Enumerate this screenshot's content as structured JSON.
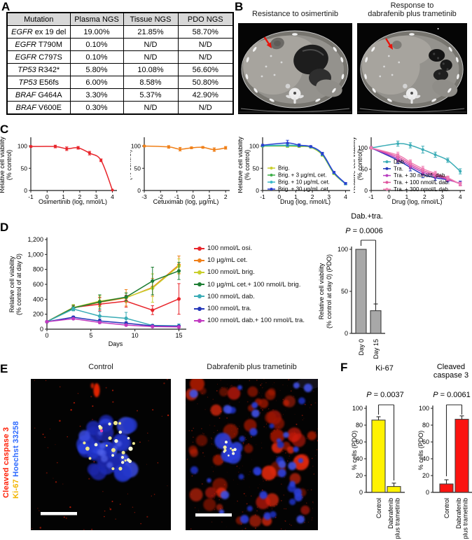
{
  "panelA": {
    "letter": "A",
    "table": {
      "headers": [
        "Mutation",
        "Plasma NGS",
        "Tissue NGS",
        "PDO NGS"
      ],
      "rows": [
        {
          "gene": "EGFR",
          "mut": "ex 19 del",
          "plasma": "19.00%",
          "tissue": "21.85%",
          "pdo": "58.70%"
        },
        {
          "gene": "EGFR",
          "mut": "T790M",
          "plasma": "0.10%",
          "tissue": "N/D",
          "pdo": "N/D"
        },
        {
          "gene": "EGFR",
          "mut": "C797S",
          "plasma": "0.10%",
          "tissue": "N/D",
          "pdo": "N/D"
        },
        {
          "gene": "TP53",
          "mut": "R342*",
          "plasma": "5.80%",
          "tissue": "10.08%",
          "pdo": "56.60%"
        },
        {
          "gene": "TP53",
          "mut": "E56fs",
          "plasma": "6.00%",
          "tissue": "8.58%",
          "pdo": "50.80%"
        },
        {
          "gene": "BRAF",
          "mut": "G464A",
          "plasma": "3.30%",
          "tissue": "5.37%",
          "pdo": "42.90%"
        },
        {
          "gene": "BRAF",
          "mut": "V600E",
          "plasma": "0.30%",
          "tissue": "N/D",
          "pdo": "N/D"
        }
      ]
    }
  },
  "panelB": {
    "letter": "B",
    "left_title": "Resistance to osimertinib",
    "right_title_line1": "Response to",
    "right_title_line2": "dabrafenib plus trametinib",
    "arrow_color": "#e8140c"
  },
  "panelC": {
    "letter": "C"
  },
  "panelD": {
    "letter": "D"
  },
  "panelE": {
    "letter": "E",
    "left_title": "Control",
    "right_title": "Dabrafenib plus trametinib",
    "stain_labels": [
      {
        "text": "Cleaved caspase 3",
        "color": "#ff2008"
      },
      {
        "text": "Ki-67",
        "color": "#f2b500"
      },
      {
        "text": "Hoechst 33258",
        "color": "#2f6bff"
      }
    ]
  },
  "panelF": {
    "letter": "F"
  },
  "chart_data": [
    {
      "id": "c_osi",
      "type": "line",
      "xlabel": "Osimertinib (log, nmol/L)",
      "ylabel": [
        "Relative cell viability",
        "(% control)"
      ],
      "xlim": [
        -1,
        4.15
      ],
      "ylim": [
        0,
        115
      ],
      "xticks": [
        -1,
        0,
        1,
        2,
        3,
        4
      ],
      "yticks": [
        0,
        50,
        100
      ],
      "series": [
        {
          "name": "osimertinib",
          "color": "#e8252b",
          "smooth": true,
          "x": [
            -1,
            0.5,
            1.2,
            1.9,
            2.6,
            3.3,
            4
          ],
          "y": [
            99,
            99,
            94,
            96,
            84,
            68,
            1
          ],
          "err": [
            2,
            3,
            4,
            3,
            4,
            3,
            1
          ]
        }
      ]
    },
    {
      "id": "c_cet",
      "type": "line",
      "xlabel": "Cetuximab (log, µg/mL)",
      "ylabel": [
        "Relative cell viability",
        "(% control)"
      ],
      "xlim": [
        -3,
        2.12
      ],
      "ylim": [
        0,
        115
      ],
      "xticks": [
        -3,
        -2,
        -1,
        0,
        1,
        2
      ],
      "yticks": [
        0,
        50,
        100
      ],
      "series": [
        {
          "name": "cetuximab",
          "color": "#f08019",
          "smooth": true,
          "x": [
            -3,
            -1.5,
            -0.8,
            -0.1,
            0.6,
            1.3,
            2
          ],
          "y": [
            100,
            98,
            93,
            96,
            97,
            92,
            96
          ],
          "err": [
            2,
            3,
            4,
            2,
            2,
            4,
            3
          ]
        }
      ]
    },
    {
      "id": "c_brig",
      "type": "line",
      "xlabel": "Drug (log, nmol/L)",
      "ylabel": [
        "Relative cell viability",
        "(% control)"
      ],
      "xlim": [
        -1,
        4.15
      ],
      "ylim": [
        0,
        115
      ],
      "xticks": [
        -1,
        0,
        1,
        2,
        3,
        4
      ],
      "yticks": [
        0,
        50,
        100
      ],
      "legend": true,
      "series": [
        {
          "name": "Brig.",
          "color": "#c9cf2d",
          "smooth": true,
          "x": [
            -1,
            0.5,
            1.2,
            1.9,
            2.6,
            3.3,
            4
          ],
          "y": [
            100,
            100,
            99,
            97,
            80,
            38,
            15
          ],
          "err": [
            2,
            3,
            2,
            2,
            3,
            2,
            2
          ]
        },
        {
          "name": "Brig. + 3 µg/mL cet.",
          "color": "#3faf4a",
          "smooth": true,
          "x": [
            -1,
            0.5,
            1.2,
            1.9,
            2.6,
            3.3,
            4
          ],
          "y": [
            100,
            101,
            100,
            98,
            81,
            39,
            15
          ],
          "err": [
            2,
            3,
            2,
            2,
            3,
            2,
            2
          ]
        },
        {
          "name": "Brig. + 10 µg/mL cet.",
          "color": "#38b8c8",
          "smooth": true,
          "x": [
            -1,
            0.5,
            1.2,
            1.9,
            2.6,
            3.3,
            4
          ],
          "y": [
            101,
            102,
            101,
            98,
            82,
            40,
            15
          ],
          "err": [
            2,
            3,
            2,
            2,
            3,
            2,
            2
          ]
        },
        {
          "name": "Brig. + 30 µg/mL cet.",
          "color": "#2b3fd0",
          "smooth": true,
          "x": [
            -1,
            0.5,
            1.2,
            1.9,
            2.6,
            3.3,
            4
          ],
          "y": [
            102,
            107,
            102,
            99,
            83,
            41,
            16
          ],
          "err": [
            2,
            6,
            3,
            2,
            3,
            2,
            2
          ]
        }
      ]
    },
    {
      "id": "c_dab",
      "type": "line",
      "xlabel": "Drug (log, nmol/L)",
      "ylabel": [
        "Relative cell viability",
        "(% control)"
      ],
      "xlim": [
        -1,
        4.15
      ],
      "ylim": [
        0,
        120
      ],
      "xticks": [
        -1,
        0,
        1,
        2,
        3,
        4
      ],
      "yticks": [
        0,
        50,
        100
      ],
      "legend": true,
      "series": [
        {
          "name": "Dab.",
          "color": "#3aacb6",
          "smooth": true,
          "x": [
            -1,
            0.5,
            1.2,
            1.9,
            2.6,
            3.3,
            4
          ],
          "y": [
            100,
            110,
            106,
            96,
            84,
            71,
            45
          ],
          "err": [
            3,
            6,
            6,
            8,
            6,
            5,
            6
          ]
        },
        {
          "name": "Tra.",
          "color": "#2336b8",
          "smooth": true,
          "x": [
            -1,
            0.5,
            1.2,
            1.9,
            2.6,
            3.3,
            4
          ],
          "y": [
            100,
            71,
            54,
            38,
            30,
            25,
            17
          ],
          "err": [
            3,
            8,
            8,
            8,
            6,
            5,
            5
          ]
        },
        {
          "name": "Tra. + 30 nmol/L dab.",
          "color": "#b83ec0",
          "smooth": true,
          "x": [
            -1,
            0.5,
            1.2,
            1.9,
            2.6,
            3.3,
            4
          ],
          "y": [
            100,
            75,
            58,
            43,
            34,
            26,
            16
          ],
          "err": [
            3,
            7,
            7,
            7,
            5,
            4,
            4
          ]
        },
        {
          "name": "Tra. + 100 nmol/L dab.",
          "color": "#e0559f",
          "smooth": true,
          "x": [
            -1,
            0.5,
            1.2,
            1.9,
            2.6,
            3.3,
            4
          ],
          "y": [
            100,
            79,
            62,
            47,
            37,
            28,
            15
          ],
          "err": [
            3,
            7,
            7,
            6,
            5,
            4,
            4
          ]
        },
        {
          "name": "Tra. + 300 nmol/L dab.",
          "color": "#f07fb4",
          "smooth": true,
          "x": [
            -1,
            0.5,
            1.2,
            1.9,
            2.6,
            3.3,
            4
          ],
          "y": [
            100,
            83,
            66,
            51,
            40,
            30,
            15
          ],
          "err": [
            3,
            7,
            6,
            6,
            5,
            4,
            4
          ]
        }
      ]
    },
    {
      "id": "d_time",
      "type": "line",
      "xlabel": "Days",
      "ylabel": [
        "Relative cell viability",
        "(% control of at day 0)"
      ],
      "xlim": [
        0,
        15.6
      ],
      "ylim": [
        0,
        1200
      ],
      "xticks": [
        0,
        5,
        10,
        15
      ],
      "yticks": [
        0,
        200,
        400,
        600,
        800,
        1000,
        1200
      ],
      "ytick_labels": [
        "0",
        "200",
        "400",
        "600",
        "800",
        "1,000",
        "1,200"
      ],
      "series": [
        {
          "name": "100 nmol/L osi.",
          "color": "#e8252b",
          "x": [
            0,
            3,
            6,
            9,
            12,
            15
          ],
          "y": [
            100,
            290,
            335,
            375,
            255,
            405
          ],
          "err": [
            8,
            25,
            90,
            80,
            60,
            205
          ]
        },
        {
          "name": "10 µg/mL cet.",
          "color": "#f08019",
          "x": [
            0,
            3,
            6,
            9,
            12,
            15
          ],
          "y": [
            100,
            285,
            360,
            420,
            560,
            860
          ],
          "err": [
            8,
            35,
            60,
            110,
            120,
            120
          ]
        },
        {
          "name": "100 nmol/L brig.",
          "color": "#c9cf2d",
          "x": [
            0,
            3,
            6,
            9,
            12,
            15
          ],
          "y": [
            100,
            290,
            375,
            425,
            550,
            845
          ],
          "err": [
            8,
            40,
            70,
            60,
            190,
            95
          ]
        },
        {
          "name": "10 µg/mL cet.+ 100 nmol/L brig.",
          "color": "#1e7e34",
          "x": [
            0,
            3,
            6,
            9,
            12,
            15
          ],
          "y": [
            100,
            285,
            365,
            430,
            645,
            780
          ],
          "err": [
            8,
            35,
            95,
            55,
            185,
            115
          ]
        },
        {
          "name": "100 nmol/L dab.",
          "color": "#3aacb6",
          "x": [
            0,
            3,
            6,
            9,
            12,
            15
          ],
          "y": [
            100,
            270,
            175,
            145,
            50,
            45
          ],
          "err": [
            8,
            25,
            60,
            80,
            15,
            25
          ]
        },
        {
          "name": "100 nmol/L tra.",
          "color": "#2336b8",
          "x": [
            0,
            3,
            6,
            9,
            12,
            15
          ],
          "y": [
            100,
            160,
            110,
            80,
            45,
            40
          ],
          "err": [
            8,
            15,
            25,
            20,
            10,
            10
          ]
        },
        {
          "name": "100 nmol/L dab.+ 100 nmol/L tra.",
          "color": "#c13ac1",
          "x": [
            0,
            3,
            6,
            9,
            12,
            15
          ],
          "y": [
            100,
            140,
            90,
            55,
            35,
            30
          ],
          "err": [
            8,
            10,
            15,
            10,
            8,
            8
          ]
        }
      ]
    },
    {
      "id": "d_bar",
      "type": "bar",
      "title_lines": [
        "Dab.+tra."
      ],
      "p_label": "P = 0.0006",
      "ylabel": [
        "Relative cell viability",
        "(% control at day 0) (PDO)"
      ],
      "categories": [
        "Day 0",
        "Day 15"
      ],
      "values": [
        100,
        27
      ],
      "errors": [
        0,
        8
      ],
      "bar_color": "#a8a8a8",
      "yticks": [
        0,
        50,
        100
      ],
      "ylim": [
        0,
        100
      ]
    },
    {
      "id": "f_ki67",
      "type": "bar",
      "title_lines": [
        "Ki-67"
      ],
      "p_label": "P = 0.0037",
      "ylabel": [
        "% cells (PDO)"
      ],
      "categories": [
        "Control",
        "Dabrafenib\nplus trametinib"
      ],
      "values": [
        86,
        7
      ],
      "errors": [
        4,
        4
      ],
      "bar_color": "#fff200",
      "yticks": [
        0,
        20,
        40,
        60,
        80,
        100
      ],
      "ylim": [
        0,
        100
      ]
    },
    {
      "id": "f_casp3",
      "type": "bar",
      "title_lines": [
        "Cleaved",
        "caspase 3"
      ],
      "p_label": "P = 0.0061",
      "ylabel": [
        "% cells (PDO)"
      ],
      "categories": [
        "Control",
        "Dabrafenib\nplus trametinib"
      ],
      "values": [
        10,
        87
      ],
      "errors": [
        5,
        4
      ],
      "bar_color": "#fb1310",
      "yticks": [
        0,
        20,
        40,
        60,
        80,
        100
      ],
      "ylim": [
        0,
        100
      ]
    }
  ]
}
